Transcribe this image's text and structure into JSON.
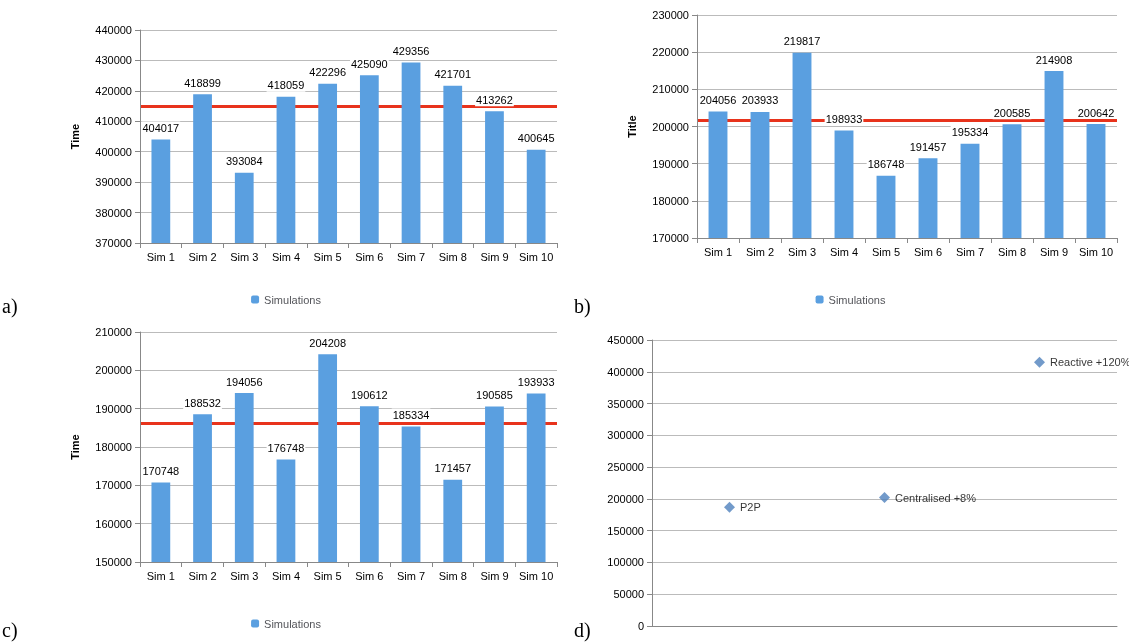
{
  "chart_data": [
    {
      "type": "bar",
      "ylabel": "Time",
      "categories": [
        "Sim 1",
        "Sim 2",
        "Sim 3",
        "Sim 4",
        "Sim 5",
        "Sim 6",
        "Sim 7",
        "Sim 8",
        "Sim 9",
        "Sim 10"
      ],
      "series": [
        {
          "name": "Simulations",
          "color": "#5a9fe0",
          "values": [
            404017,
            418899,
            393084,
            418059,
            422296,
            425090,
            429356,
            421701,
            413262,
            400645
          ]
        }
      ],
      "ylim": [
        370000,
        440000
      ],
      "yticks": [
        370000,
        380000,
        390000,
        400000,
        410000,
        420000,
        430000,
        440000
      ],
      "grid": "y",
      "legend": "bottom",
      "data_labels": true,
      "ref_lines": [
        {
          "axis": "y",
          "value": 415000,
          "color": "#e8331c"
        }
      ],
      "annotations": [
        "a)"
      ]
    },
    {
      "type": "bar",
      "ylabel": "Title",
      "categories": [
        "Sim 1",
        "Sim 2",
        "Sim 3",
        "Sim 4",
        "Sim 5",
        "Sim 6",
        "Sim 7",
        "Sim 8",
        "Sim 9",
        "Sim 10"
      ],
      "series": [
        {
          "name": "Simulations",
          "color": "#5a9fe0",
          "values": [
            204056,
            203933,
            219817,
            198933,
            186748,
            191457,
            195334,
            200585,
            214908,
            200642
          ]
        }
      ],
      "ylim": [
        170000,
        230000
      ],
      "yticks": [
        170000,
        180000,
        190000,
        200000,
        210000,
        220000,
        230000
      ],
      "grid": "y",
      "legend": "bottom",
      "data_labels": true,
      "ref_lines": [
        {
          "axis": "y",
          "value": 201800,
          "color": "#e8331c"
        }
      ],
      "annotations": [
        "b)"
      ]
    },
    {
      "type": "bar",
      "ylabel": "Time",
      "categories": [
        "Sim 1",
        "Sim 2",
        "Sim 3",
        "Sim 4",
        "Sim 5",
        "Sim 6",
        "Sim 7",
        "Sim 8",
        "Sim 9",
        "Sim 10"
      ],
      "series": [
        {
          "name": "Simulations",
          "color": "#5a9fe0",
          "values": [
            170748,
            188532,
            194056,
            176748,
            204208,
            190612,
            185334,
            171457,
            190585,
            193933
          ]
        }
      ],
      "ylim": [
        150000,
        210000
      ],
      "yticks": [
        150000,
        160000,
        170000,
        180000,
        190000,
        200000,
        210000
      ],
      "grid": "y",
      "legend": "bottom",
      "data_labels": true,
      "ref_lines": [
        {
          "axis": "y",
          "value": 186200,
          "color": "#e8331c"
        }
      ],
      "annotations": [
        "c)"
      ]
    },
    {
      "type": "scatter",
      "categories": [
        null,
        null,
        null
      ],
      "series": [
        {
          "name": "P2P",
          "color": "#4f81bd",
          "values": [
            187000,
            null,
            null
          ]
        },
        {
          "name": "Centralised +8%",
          "color": "#4f81bd",
          "values": [
            null,
            202000,
            null
          ]
        },
        {
          "name": "Reactive +120%",
          "color": "#4f81bd",
          "values": [
            null,
            null,
            415000
          ]
        }
      ],
      "ylim": [
        0,
        450000
      ],
      "yticks": [
        0,
        50000,
        100000,
        150000,
        200000,
        250000,
        300000,
        350000,
        400000,
        450000
      ],
      "grid": "y",
      "marker": "diamond",
      "tick_labels": "y",
      "annotations": [
        "d)"
      ]
    }
  ]
}
